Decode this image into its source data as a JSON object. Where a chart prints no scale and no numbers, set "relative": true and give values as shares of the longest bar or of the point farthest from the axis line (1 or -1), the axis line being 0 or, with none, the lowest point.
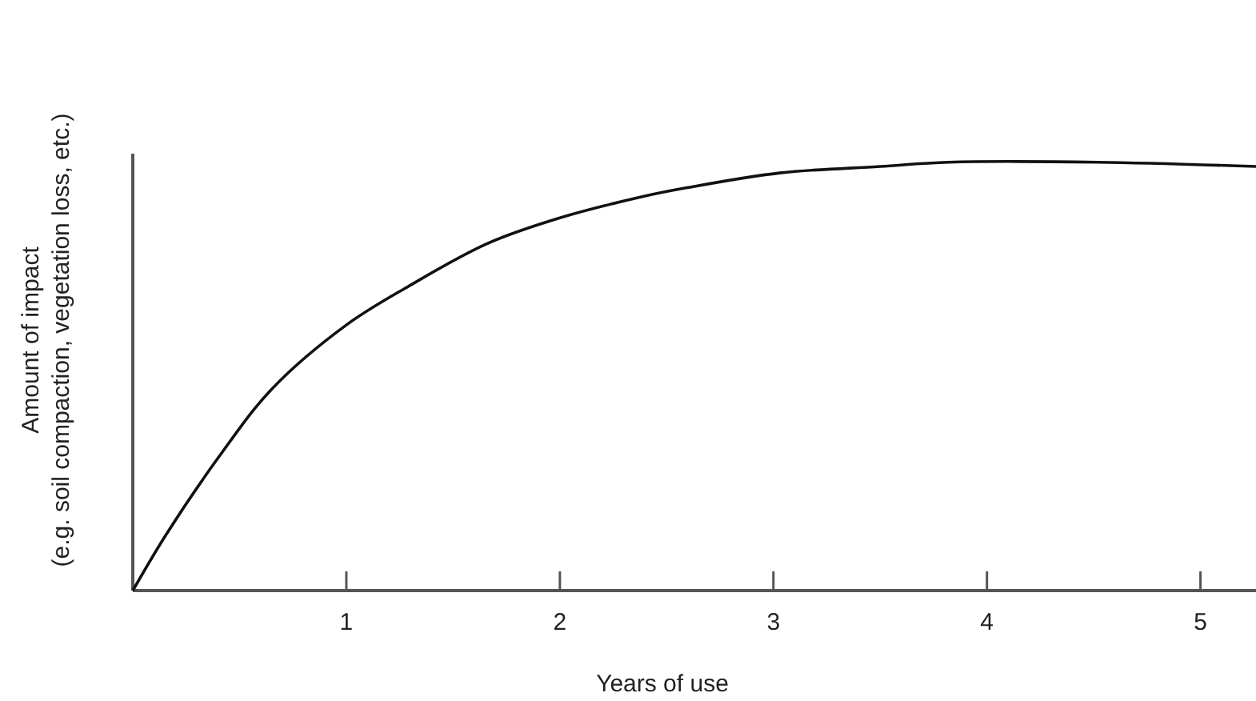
{
  "chart_data": {
    "type": "line",
    "xlabel": "Years of use",
    "ylabel": "Amount of impact\n(e.g. soil compaction, vegetation loss, etc.)",
    "relative": true,
    "x": [
      0,
      0.155,
      0.4,
      0.65,
      1.0,
      1.29,
      1.66,
      2.0,
      2.39,
      2.59,
      3.03,
      3.5,
      3.82,
      4.52,
      5.26
    ],
    "series": [
      {
        "color": "#111111",
        "values": [
          0,
          0.13,
          0.31,
          0.47,
          0.62,
          0.71,
          0.81,
          0.87,
          0.92,
          0.94,
          0.975,
          0.99,
          1.0,
          1.0,
          0.99
        ]
      }
    ],
    "xlim": [
      0,
      5.26
    ],
    "xticks": [
      1,
      2,
      3,
      4,
      5
    ],
    "grid": false,
    "marker": "none",
    "line_style": "solid"
  }
}
